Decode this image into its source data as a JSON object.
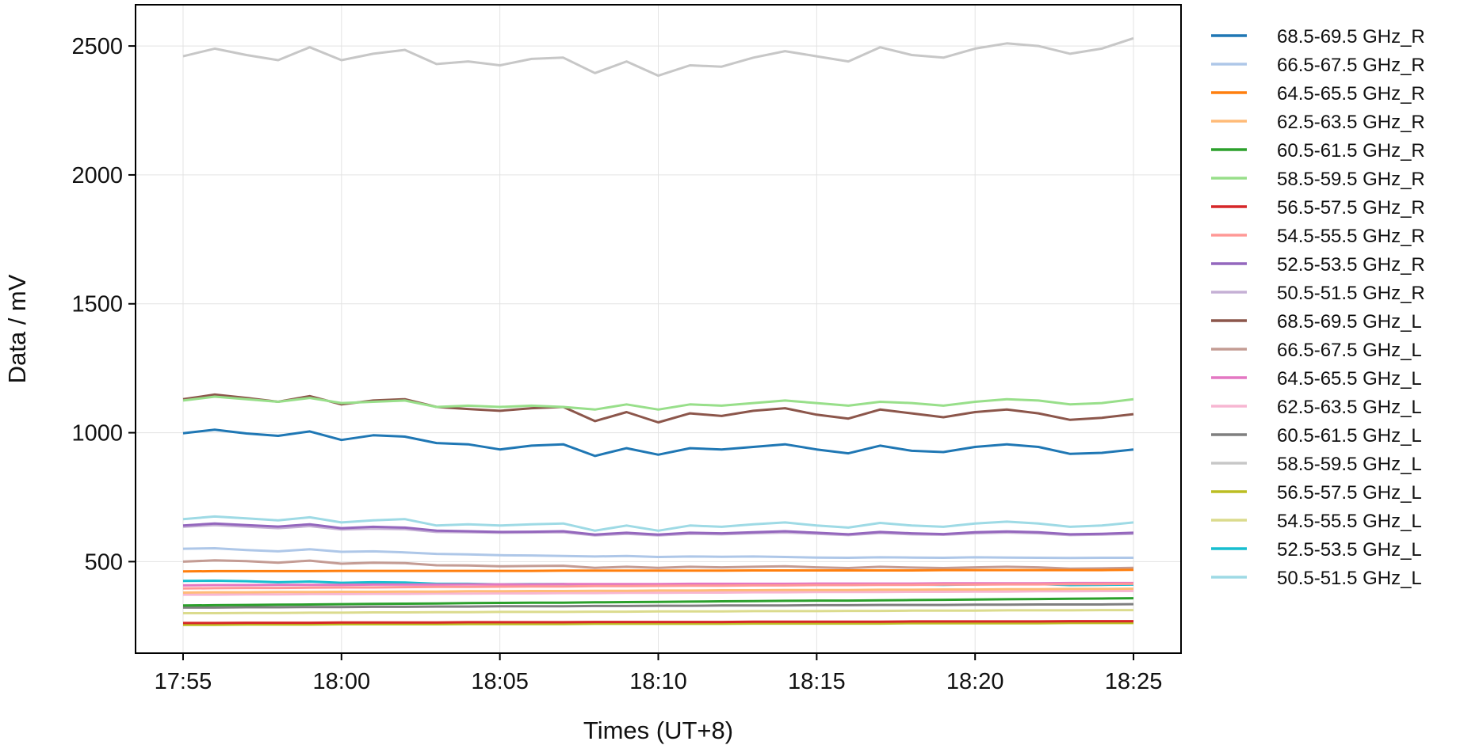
{
  "chart_data": {
    "type": "line",
    "xlabel": "Times (UT+8)",
    "ylabel": "Data / mV",
    "x_ticks": [
      "17:55",
      "18:00",
      "18:05",
      "18:10",
      "18:15",
      "18:20",
      "18:25"
    ],
    "x_tick_minutes": [
      0,
      5,
      10,
      15,
      20,
      25,
      30
    ],
    "xlim_minutes": [
      -1.5,
      31.5
    ],
    "xlim": [
      "17:53:30",
      "18:26:30"
    ],
    "y_ticks": [
      500,
      1000,
      1500,
      2000,
      2500
    ],
    "ylim": [
      145,
      2660
    ],
    "grid": true,
    "legend_position": "outside-right",
    "x_minutes": [
      0,
      1,
      2,
      3,
      4,
      5,
      6,
      7,
      8,
      9,
      10,
      11,
      12,
      13,
      14,
      15,
      16,
      17,
      18,
      19,
      20,
      21,
      22,
      23,
      24,
      25,
      26,
      27,
      28,
      29,
      30
    ],
    "series": [
      {
        "name": "68.5-69.5 GHz_R",
        "color": "#1f77b4",
        "values": [
          998,
          1012,
          997,
          988,
          1005,
          972,
          990,
          985,
          960,
          955,
          935,
          950,
          955,
          910,
          940,
          915,
          940,
          935,
          945,
          955,
          935,
          920,
          950,
          930,
          925,
          945,
          955,
          945,
          918,
          922,
          935
        ]
      },
      {
        "name": "66.5-67.5 GHz_R",
        "color": "#aec7e8",
        "values": [
          550,
          552,
          545,
          540,
          548,
          538,
          540,
          536,
          530,
          528,
          525,
          524,
          522,
          520,
          522,
          518,
          520,
          519,
          520,
          518,
          516,
          515,
          517,
          516,
          515,
          517,
          516,
          515,
          514,
          515,
          515
        ]
      },
      {
        "name": "64.5-65.5 GHz_R",
        "color": "#ff7f0e",
        "values": [
          462,
          463,
          463,
          463,
          463,
          464,
          464,
          464,
          464,
          464,
          464,
          464,
          465,
          465,
          465,
          465,
          465,
          465,
          466,
          466,
          466,
          466,
          466,
          466,
          467,
          467,
          467,
          467,
          467,
          467,
          468
        ]
      },
      {
        "name": "62.5-63.5 GHz_R",
        "color": "#ffbb78",
        "values": [
          380,
          381,
          381,
          382,
          382,
          383,
          383,
          384,
          384,
          385,
          385,
          386,
          386,
          387,
          387,
          388,
          388,
          389,
          389,
          390,
          390,
          390,
          391,
          391,
          392,
          392,
          393,
          393,
          394,
          394,
          395
        ]
      },
      {
        "name": "60.5-61.5 GHz_R",
        "color": "#2ca02c",
        "values": [
          330,
          331,
          332,
          333,
          334,
          335,
          336,
          337,
          338,
          339,
          340,
          341,
          341,
          342,
          343,
          344,
          345,
          346,
          347,
          348,
          349,
          349,
          350,
          351,
          352,
          353,
          354,
          355,
          356,
          357,
          358
        ]
      },
      {
        "name": "58.5-59.5 GHz_R",
        "color": "#98df8a",
        "values": [
          1125,
          1140,
          1130,
          1120,
          1135,
          1115,
          1120,
          1125,
          1100,
          1105,
          1100,
          1105,
          1100,
          1090,
          1110,
          1090,
          1110,
          1105,
          1115,
          1125,
          1115,
          1105,
          1120,
          1115,
          1105,
          1120,
          1130,
          1125,
          1110,
          1115,
          1130
        ]
      },
      {
        "name": "56.5-57.5 GHz_R",
        "color": "#d62728",
        "values": [
          262,
          262,
          263,
          263,
          263,
          264,
          264,
          264,
          264,
          265,
          265,
          265,
          265,
          266,
          266,
          266,
          266,
          266,
          267,
          267,
          267,
          267,
          267,
          268,
          268,
          268,
          268,
          268,
          269,
          269,
          269
        ]
      },
      {
        "name": "54.5-55.5 GHz_R",
        "color": "#ff9896",
        "values": [
          396,
          397,
          398,
          398,
          399,
          400,
          400,
          401,
          402,
          402,
          403,
          404,
          404,
          405,
          405,
          406,
          407,
          407,
          408,
          408,
          409,
          409,
          410,
          410,
          411,
          411,
          412,
          412,
          413,
          413,
          414
        ]
      },
      {
        "name": "52.5-53.5 GHz_R",
        "color": "#9467bd",
        "values": [
          640,
          648,
          642,
          636,
          645,
          630,
          635,
          632,
          620,
          618,
          615,
          616,
          618,
          605,
          612,
          605,
          612,
          610,
          614,
          618,
          612,
          606,
          615,
          610,
          607,
          614,
          617,
          614,
          606,
          608,
          612
        ]
      },
      {
        "name": "50.5-51.5 GHz_R",
        "color": "#c5b0d5",
        "values": [
          635,
          642,
          636,
          630,
          638,
          625,
          628,
          626,
          615,
          614,
          612,
          613,
          614,
          602,
          608,
          602,
          608,
          606,
          610,
          613,
          608,
          603,
          611,
          606,
          604,
          610,
          613,
          610,
          603,
          605,
          608
        ]
      },
      {
        "name": "68.5-69.5 GHz_L",
        "color": "#8c564b",
        "values": [
          1130,
          1148,
          1135,
          1120,
          1142,
          1110,
          1125,
          1130,
          1100,
          1092,
          1085,
          1095,
          1100,
          1045,
          1080,
          1040,
          1075,
          1065,
          1085,
          1095,
          1070,
          1055,
          1090,
          1075,
          1060,
          1080,
          1090,
          1075,
          1050,
          1058,
          1072
        ]
      },
      {
        "name": "66.5-67.5 GHz_L",
        "color": "#c49c94",
        "values": [
          500,
          505,
          502,
          496,
          504,
          492,
          496,
          494,
          486,
          485,
          482,
          483,
          484,
          476,
          480,
          476,
          480,
          478,
          480,
          482,
          478,
          475,
          480,
          477,
          475,
          478,
          480,
          478,
          473,
          474,
          476
        ]
      },
      {
        "name": "64.5-65.5 GHz_L",
        "color": "#e377c2",
        "values": [
          408,
          409,
          409,
          410,
          410,
          410,
          411,
          411,
          411,
          412,
          412,
          412,
          413,
          413,
          413,
          413,
          414,
          414,
          414,
          414,
          415,
          415,
          415,
          415,
          416,
          416,
          416,
          416,
          417,
          417,
          417
        ]
      },
      {
        "name": "62.5-63.5 GHz_L",
        "color": "#f7b6d2",
        "values": [
          372,
          372,
          373,
          373,
          374,
          374,
          375,
          375,
          376,
          376,
          377,
          377,
          378,
          378,
          379,
          379,
          380,
          380,
          381,
          381,
          382,
          382,
          382,
          383,
          383,
          384,
          384,
          385,
          385,
          386,
          386
        ]
      },
      {
        "name": "60.5-61.5 GHz_L",
        "color": "#7f7f7f",
        "values": [
          322,
          322,
          323,
          323,
          324,
          324,
          325,
          325,
          326,
          326,
          327,
          327,
          327,
          328,
          328,
          329,
          329,
          330,
          330,
          330,
          331,
          331,
          332,
          332,
          332,
          333,
          333,
          334,
          334,
          334,
          335
        ]
      },
      {
        "name": "58.5-59.5 GHz_L",
        "color": "#c7c7c7",
        "values": [
          2460,
          2490,
          2465,
          2445,
          2495,
          2445,
          2470,
          2485,
          2430,
          2440,
          2425,
          2450,
          2455,
          2395,
          2440,
          2385,
          2425,
          2420,
          2455,
          2480,
          2460,
          2440,
          2495,
          2465,
          2455,
          2490,
          2510,
          2500,
          2470,
          2490,
          2530
        ]
      },
      {
        "name": "56.5-57.5 GHz_L",
        "color": "#bcbd22",
        "values": [
          255,
          255,
          256,
          256,
          256,
          257,
          257,
          257,
          257,
          258,
          258,
          258,
          258,
          259,
          259,
          259,
          259,
          259,
          260,
          260,
          260,
          260,
          260,
          261,
          261,
          261,
          261,
          261,
          262,
          262,
          262
        ]
      },
      {
        "name": "54.5-55.5 GHz_L",
        "color": "#dbdb8d",
        "values": [
          300,
          300,
          301,
          301,
          302,
          302,
          303,
          303,
          304,
          304,
          305,
          305,
          305,
          306,
          306,
          307,
          307,
          307,
          308,
          308,
          308,
          309,
          309,
          310,
          310,
          310,
          311,
          311,
          311,
          312,
          312
        ]
      },
      {
        "name": "52.5-53.5 GHz_L",
        "color": "#17becf",
        "values": [
          425,
          426,
          424,
          420,
          423,
          418,
          420,
          419,
          414,
          414,
          412,
          413,
          413,
          408,
          411,
          407,
          411,
          410,
          412,
          413,
          411,
          409,
          413,
          411,
          410,
          412,
          414,
          413,
          409,
          410,
          411
        ]
      },
      {
        "name": "50.5-51.5 GHz_L",
        "color": "#9edae5",
        "values": [
          665,
          675,
          668,
          660,
          672,
          652,
          660,
          665,
          640,
          645,
          640,
          645,
          648,
          620,
          640,
          620,
          640,
          635,
          645,
          652,
          640,
          632,
          650,
          640,
          635,
          648,
          655,
          648,
          635,
          640,
          652
        ]
      }
    ]
  }
}
